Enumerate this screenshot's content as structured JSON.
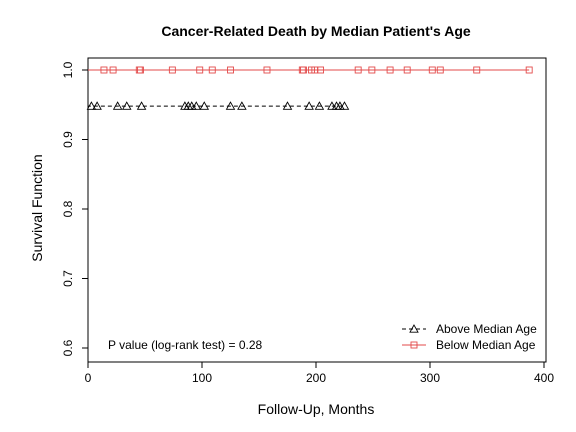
{
  "chart_data": {
    "type": "line",
    "title": "Cancer-Related Death by Median Patient's Age",
    "xlabel": "Follow-Up, Months",
    "ylabel": "Survival Function",
    "xlim": [
      0,
      400
    ],
    "ylim": [
      0.6,
      1.0
    ],
    "xticks": [
      0,
      100,
      200,
      300,
      400
    ],
    "yticks": [
      0.6,
      0.7,
      0.8,
      0.9,
      1.0
    ],
    "grid": false,
    "legend_position": "bottom-right",
    "annotation": "P value (log-rank test) =   0.28",
    "series": [
      {
        "name": "Above Median Age",
        "color": "#000000",
        "line_style": "dashed",
        "marker": "triangle",
        "steps": [
          [
            0,
            1.0
          ],
          [
            0,
            0.948
          ],
          [
            226,
            0.948
          ]
        ],
        "censored_x": [
          3,
          8,
          26,
          34,
          47,
          85,
          88,
          91,
          95,
          102,
          125,
          135,
          175,
          194,
          203,
          214,
          218,
          221,
          225
        ],
        "censored_y": 0.948
      },
      {
        "name": "Below Median Age",
        "color": "#e34a4a",
        "line_style": "solid",
        "marker": "square",
        "steps": [
          [
            0,
            1.0
          ],
          [
            387,
            1.0
          ]
        ],
        "censored_x": [
          14,
          22,
          45,
          46,
          74,
          98,
          109,
          125,
          157,
          188,
          189,
          196,
          199,
          204,
          237,
          249,
          265,
          280,
          302,
          309,
          341,
          387
        ],
        "censored_y": 1.0
      }
    ]
  }
}
